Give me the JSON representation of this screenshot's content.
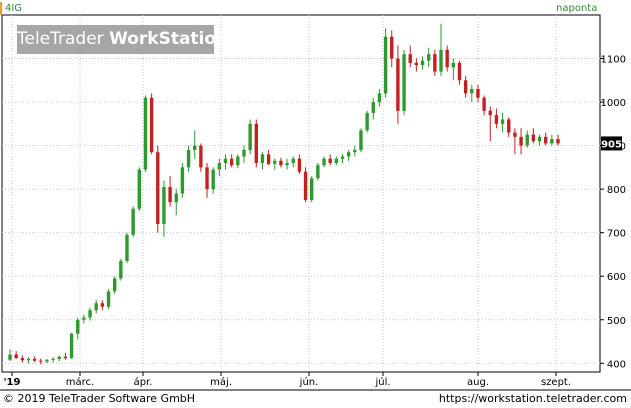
{
  "header": {
    "ticker": "4IG",
    "period": "naponta"
  },
  "watermark": {
    "brand": "TeleTrader",
    "product": "WorkStation"
  },
  "footer": {
    "copyright": "© 2019 TeleTrader Software GmbH",
    "url": "https://workstation.teletrader.com"
  },
  "colors": {
    "up": "#2e9a2e",
    "down": "#c42020",
    "grid": "#c8c8c8",
    "axis": "#000000"
  },
  "chart_data": {
    "type": "candlestick",
    "title": "4IG",
    "ylim": [
      380,
      1200
    ],
    "yticks": [
      400,
      500,
      600,
      700,
      800,
      900,
      1000,
      1100
    ],
    "last_price_label": "905",
    "x_labels": [
      "'19",
      "márc.",
      "ápr.",
      "máj.",
      "jún.",
      "júl.",
      "aug.",
      "szept."
    ],
    "series": [
      {
        "values": [
          [
            408,
            432,
            405,
            420
          ],
          [
            420,
            428,
            410,
            412
          ],
          [
            412,
            418,
            402,
            407
          ],
          [
            407,
            414,
            400,
            410
          ],
          [
            410,
            416,
            403,
            406
          ],
          [
            406,
            411,
            398,
            404
          ],
          [
            404,
            410,
            400,
            408
          ],
          [
            408,
            414,
            402,
            410
          ],
          [
            410,
            418,
            405,
            415
          ],
          [
            415,
            424,
            408,
            412
          ],
          [
            412,
            470,
            410,
            468
          ],
          [
            468,
            505,
            455,
            500
          ],
          [
            500,
            512,
            492,
            505
          ],
          [
            505,
            528,
            498,
            522
          ],
          [
            522,
            545,
            515,
            538
          ],
          [
            538,
            545,
            522,
            530
          ],
          [
            530,
            570,
            525,
            565
          ],
          [
            565,
            600,
            560,
            595
          ],
          [
            595,
            640,
            590,
            635
          ],
          [
            635,
            700,
            630,
            695
          ],
          [
            695,
            760,
            690,
            755
          ],
          [
            755,
            850,
            750,
            845
          ],
          [
            845,
            1015,
            840,
            1010
          ],
          [
            1010,
            1020,
            880,
            885
          ],
          [
            885,
            900,
            700,
            720
          ],
          [
            720,
            820,
            690,
            805
          ],
          [
            805,
            830,
            760,
            770
          ],
          [
            770,
            800,
            740,
            790
          ],
          [
            790,
            860,
            780,
            850
          ],
          [
            850,
            900,
            840,
            890
          ],
          [
            890,
            935,
            870,
            900
          ],
          [
            900,
            905,
            840,
            850
          ],
          [
            850,
            860,
            780,
            800
          ],
          [
            800,
            850,
            790,
            845
          ],
          [
            845,
            870,
            830,
            860
          ],
          [
            860,
            880,
            845,
            870
          ],
          [
            870,
            880,
            850,
            855
          ],
          [
            855,
            880,
            848,
            875
          ],
          [
            875,
            900,
            860,
            890
          ],
          [
            890,
            960,
            880,
            950
          ],
          [
            950,
            960,
            850,
            860
          ],
          [
            860,
            885,
            845,
            880
          ],
          [
            880,
            890,
            855,
            858
          ],
          [
            858,
            870,
            845,
            865
          ],
          [
            865,
            872,
            850,
            855
          ],
          [
            855,
            870,
            845,
            860
          ],
          [
            860,
            875,
            850,
            870
          ],
          [
            870,
            880,
            835,
            840
          ],
          [
            840,
            850,
            770,
            775
          ],
          [
            775,
            830,
            770,
            825
          ],
          [
            825,
            860,
            820,
            855
          ],
          [
            855,
            875,
            850,
            870
          ],
          [
            870,
            880,
            855,
            860
          ],
          [
            860,
            875,
            855,
            870
          ],
          [
            870,
            880,
            860,
            875
          ],
          [
            875,
            890,
            865,
            885
          ],
          [
            885,
            900,
            875,
            890
          ],
          [
            890,
            940,
            885,
            935
          ],
          [
            935,
            980,
            930,
            975
          ],
          [
            975,
            1010,
            960,
            1000
          ],
          [
            1000,
            1030,
            990,
            1020
          ],
          [
            1020,
            1170,
            1010,
            1150
          ],
          [
            1150,
            1165,
            1080,
            1100
          ],
          [
            1100,
            1130,
            950,
            980
          ],
          [
            980,
            1120,
            970,
            1110
          ],
          [
            1110,
            1130,
            1080,
            1090
          ],
          [
            1090,
            1100,
            1070,
            1085
          ],
          [
            1085,
            1105,
            1075,
            1095
          ],
          [
            1095,
            1125,
            1080,
            1110
          ],
          [
            1110,
            1120,
            1060,
            1070
          ],
          [
            1070,
            1180,
            1060,
            1120
          ],
          [
            1120,
            1130,
            1070,
            1080
          ],
          [
            1080,
            1100,
            1050,
            1090
          ],
          [
            1090,
            1095,
            1040,
            1050
          ],
          [
            1050,
            1060,
            1010,
            1020
          ],
          [
            1020,
            1040,
            1000,
            1030
          ],
          [
            1030,
            1040,
            1000,
            1010
          ],
          [
            1010,
            1015,
            970,
            980
          ],
          [
            980,
            990,
            910,
            970
          ],
          [
            970,
            985,
            940,
            950
          ],
          [
            950,
            975,
            930,
            960
          ],
          [
            960,
            965,
            920,
            930
          ],
          [
            930,
            940,
            880,
            920
          ],
          [
            920,
            940,
            880,
            900
          ],
          [
            900,
            935,
            895,
            925
          ],
          [
            925,
            940,
            905,
            910
          ],
          [
            910,
            925,
            900,
            920
          ],
          [
            920,
            930,
            900,
            905
          ],
          [
            905,
            925,
            900,
            915
          ],
          [
            915,
            925,
            900,
            905
          ]
        ]
      }
    ]
  }
}
